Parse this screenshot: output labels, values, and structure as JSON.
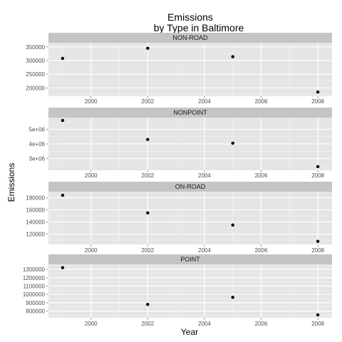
{
  "chart_data": {
    "type": "scatter",
    "title_lines": [
      "Emissions",
      "by Type in Baltimore"
    ],
    "xlabel": "Year",
    "ylabel": "Emissions",
    "x_ticks": [
      2000,
      2002,
      2004,
      2006,
      2008
    ],
    "x_tick_labels": [
      "2000",
      "2002",
      "2004",
      "2006",
      "2008"
    ],
    "xlim": [
      1998.5,
      2008.5
    ],
    "grid": true,
    "panels": [
      {
        "name": "NON-ROAD",
        "x": [
          1999,
          2002,
          2005,
          2008
        ],
        "y": [
          308000,
          345000,
          314000,
          185000
        ],
        "ylim": [
          170000,
          365000
        ],
        "y_ticks": [
          200000,
          250000,
          300000,
          350000
        ],
        "y_tick_labels": [
          "200000",
          "250000",
          "300000",
          "350000"
        ]
      },
      {
        "name": "NONPOINT",
        "x": [
          1999,
          2002,
          2005,
          2008
        ],
        "y": [
          5600000,
          4300000,
          4050000,
          2450000
        ],
        "ylim": [
          2200000,
          5800000
        ],
        "y_ticks": [
          3000000,
          4000000,
          5000000
        ],
        "y_tick_labels": [
          "3e+06",
          "4e+06",
          "5e+06"
        ]
      },
      {
        "name": "ON-ROAD",
        "x": [
          1999,
          2002,
          2005,
          2008
        ],
        "y": [
          184000,
          155000,
          135000,
          108000
        ],
        "ylim": [
          103000,
          190000
        ],
        "y_ticks": [
          120000,
          140000,
          160000,
          180000
        ],
        "y_tick_labels": [
          "120000",
          "140000",
          "160000",
          "180000"
        ]
      },
      {
        "name": "POINT",
        "x": [
          1999,
          2002,
          2005,
          2008
        ],
        "y": [
          1320000,
          880000,
          965000,
          755000
        ],
        "ylim": [
          720000,
          1360000
        ],
        "y_ticks": [
          800000,
          900000,
          1000000,
          1100000,
          1200000,
          1300000
        ],
        "y_tick_labels": [
          "800000",
          "900000",
          "1000000",
          "1100000",
          "1200000",
          "1300000"
        ]
      }
    ]
  },
  "colors": {
    "panel_background": "#e5e5e5",
    "strip_background": "#c4c4c4",
    "grid_major": "#ffffff",
    "grid_minor": "#f2f2f2",
    "point": "#000000",
    "tick": "#7f7f7f"
  }
}
